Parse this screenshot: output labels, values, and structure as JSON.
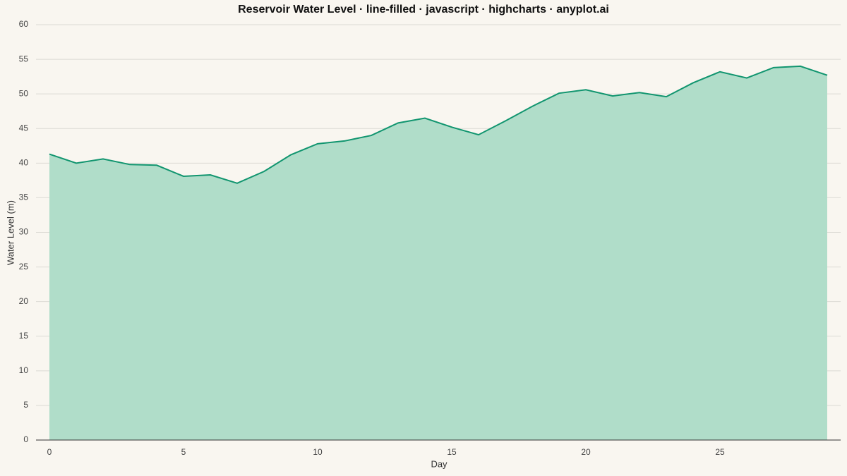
{
  "chart_data": {
    "type": "area",
    "title": "Reservoir Water Level · line-filled · javascript · highcharts · anyplot.ai",
    "x_label": "Day",
    "y_label": "Water Level (m)",
    "x": [
      0,
      1,
      2,
      3,
      4,
      5,
      6,
      7,
      8,
      9,
      10,
      11,
      12,
      13,
      14,
      15,
      16,
      17,
      18,
      19,
      20,
      21,
      22,
      23,
      24,
      25,
      26,
      27,
      28,
      29
    ],
    "series": [
      {
        "name": "Water Level",
        "color": "#11956f",
        "fill": "#b0ddc9",
        "values": [
          41.3,
          40.0,
          40.6,
          39.8,
          39.7,
          38.1,
          38.3,
          37.1,
          38.8,
          41.2,
          42.8,
          43.2,
          44.0,
          45.8,
          46.5,
          45.2,
          44.1,
          46.1,
          48.2,
          50.1,
          50.6,
          49.7,
          50.2,
          49.6,
          51.6,
          53.2,
          52.3,
          53.8,
          54.0,
          52.7
        ]
      }
    ],
    "xlim": [
      -0.5,
      29.5
    ],
    "xticks": [
      0,
      5,
      10,
      15,
      20,
      25
    ],
    "ylim": [
      0,
      60
    ],
    "yticks": [
      0,
      5,
      10,
      15,
      20,
      25,
      30,
      35,
      40,
      45,
      50,
      55,
      60
    ],
    "grid": true
  }
}
